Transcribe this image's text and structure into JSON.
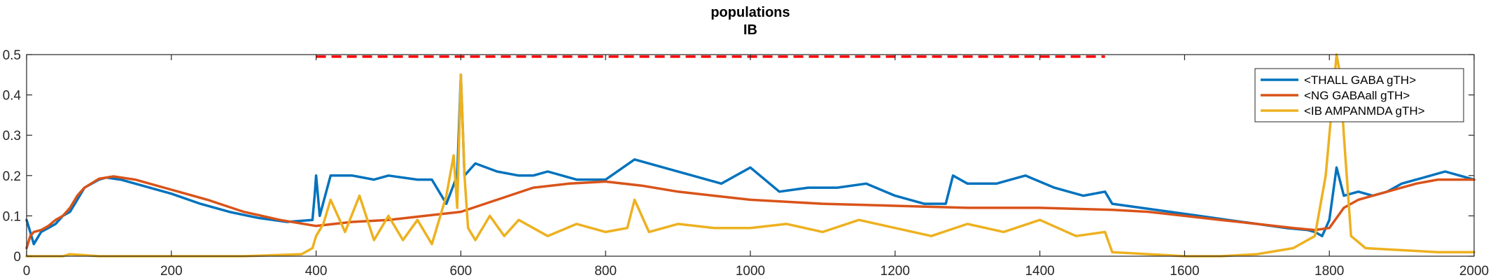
{
  "chart_data": {
    "type": "line",
    "title": "populations",
    "subtitle": "IB",
    "xlabel": "",
    "ylabel": "",
    "xlim": [
      0,
      2000
    ],
    "ylim": [
      0,
      0.5
    ],
    "x_ticks": [
      0,
      200,
      400,
      600,
      800,
      1000,
      1200,
      1400,
      1600,
      1800,
      2000
    ],
    "x_tick_labels": [
      "0",
      "200",
      "400",
      "600",
      "800",
      "1000",
      "1200",
      "1400",
      "1600",
      "1800",
      "2000"
    ],
    "y_ticks": [
      0,
      0.1,
      0.2,
      0.3,
      0.4,
      0.5
    ],
    "y_tick_labels": [
      "0",
      "0.1",
      "0.2",
      "0.3",
      "0.4",
      "0.5"
    ],
    "grid": false,
    "legend_position": "top-right",
    "stimulus_marker": {
      "style": "dashed",
      "color": "#ff0000",
      "y": 0.495,
      "x_start": 400,
      "x_end": 1490
    },
    "series": [
      {
        "name": "<THALL GABA gTH>",
        "color": "#0072bd",
        "x": [
          0,
          5,
          10,
          20,
          30,
          40,
          50,
          60,
          70,
          80,
          100,
          110,
          130,
          150,
          170,
          200,
          240,
          280,
          320,
          360,
          395,
          398,
          400,
          405,
          420,
          450,
          480,
          500,
          540,
          560,
          580,
          595,
          600,
          605,
          620,
          650,
          680,
          700,
          720,
          760,
          800,
          840,
          880,
          920,
          960,
          1000,
          1040,
          1080,
          1120,
          1160,
          1200,
          1240,
          1270,
          1280,
          1300,
          1340,
          1380,
          1420,
          1460,
          1490,
          1500,
          1540,
          1580,
          1620,
          1660,
          1700,
          1740,
          1770,
          1780,
          1790,
          1800,
          1810,
          1820,
          1840,
          1860,
          1880,
          1900,
          1920,
          1940,
          1960,
          1980,
          2000
        ],
        "values": [
          0.09,
          0.06,
          0.03,
          0.06,
          0.07,
          0.08,
          0.1,
          0.11,
          0.14,
          0.17,
          0.19,
          0.195,
          0.19,
          0.18,
          0.17,
          0.155,
          0.13,
          0.11,
          0.095,
          0.085,
          0.09,
          0.15,
          0.2,
          0.1,
          0.2,
          0.2,
          0.19,
          0.2,
          0.19,
          0.19,
          0.13,
          0.2,
          0.45,
          0.2,
          0.23,
          0.21,
          0.2,
          0.2,
          0.21,
          0.19,
          0.19,
          0.24,
          0.22,
          0.2,
          0.18,
          0.22,
          0.16,
          0.17,
          0.17,
          0.18,
          0.15,
          0.13,
          0.13,
          0.2,
          0.18,
          0.18,
          0.2,
          0.17,
          0.15,
          0.16,
          0.13,
          0.12,
          0.11,
          0.1,
          0.09,
          0.08,
          0.07,
          0.065,
          0.06,
          0.05,
          0.09,
          0.22,
          0.15,
          0.16,
          0.15,
          0.16,
          0.18,
          0.19,
          0.2,
          0.21,
          0.2,
          0.19
        ]
      },
      {
        "name": "<NG GABAall gTH>",
        "color": "#d95319",
        "x": [
          0,
          5,
          10,
          20,
          30,
          40,
          50,
          60,
          70,
          80,
          100,
          120,
          150,
          200,
          250,
          300,
          350,
          400,
          450,
          500,
          550,
          600,
          650,
          700,
          750,
          800,
          850,
          900,
          950,
          1000,
          1100,
          1200,
          1300,
          1400,
          1500,
          1550,
          1600,
          1650,
          1700,
          1750,
          1780,
          1800,
          1820,
          1840,
          1860,
          1880,
          1900,
          1920,
          1950,
          2000
        ],
        "values": [
          0.02,
          0.05,
          0.06,
          0.065,
          0.075,
          0.09,
          0.1,
          0.12,
          0.15,
          0.17,
          0.192,
          0.198,
          0.19,
          0.165,
          0.14,
          0.11,
          0.09,
          0.075,
          0.085,
          0.09,
          0.1,
          0.11,
          0.14,
          0.17,
          0.18,
          0.185,
          0.175,
          0.16,
          0.15,
          0.14,
          0.13,
          0.125,
          0.12,
          0.12,
          0.115,
          0.11,
          0.1,
          0.09,
          0.08,
          0.07,
          0.065,
          0.07,
          0.12,
          0.14,
          0.15,
          0.16,
          0.17,
          0.18,
          0.19,
          0.19
        ]
      },
      {
        "name": "<IB AMPANMDA gTH>",
        "color": "#edb120",
        "x": [
          0,
          50,
          60,
          100,
          200,
          300,
          380,
          395,
          400,
          410,
          420,
          440,
          460,
          480,
          500,
          520,
          540,
          560,
          580,
          590,
          595,
          600,
          605,
          610,
          620,
          640,
          660,
          680,
          700,
          720,
          760,
          800,
          830,
          840,
          860,
          900,
          950,
          1000,
          1050,
          1100,
          1150,
          1200,
          1250,
          1300,
          1350,
          1400,
          1450,
          1490,
          1500,
          1550,
          1600,
          1650,
          1700,
          1750,
          1780,
          1795,
          1800,
          1810,
          1815,
          1820,
          1830,
          1850,
          1900,
          1950,
          2000
        ],
        "values": [
          0,
          0,
          0.005,
          0,
          0,
          0,
          0.005,
          0.02,
          0.05,
          0.08,
          0.14,
          0.06,
          0.15,
          0.04,
          0.1,
          0.04,
          0.09,
          0.03,
          0.15,
          0.25,
          0.12,
          0.45,
          0.2,
          0.07,
          0.04,
          0.1,
          0.05,
          0.09,
          0.07,
          0.05,
          0.08,
          0.06,
          0.07,
          0.14,
          0.06,
          0.08,
          0.07,
          0.07,
          0.08,
          0.06,
          0.09,
          0.07,
          0.05,
          0.08,
          0.06,
          0.09,
          0.05,
          0.06,
          0.01,
          0.005,
          0,
          0,
          0.005,
          0.02,
          0.05,
          0.2,
          0.3,
          0.5,
          0.45,
          0.3,
          0.05,
          0.02,
          0.015,
          0.01,
          0.01
        ]
      }
    ]
  }
}
